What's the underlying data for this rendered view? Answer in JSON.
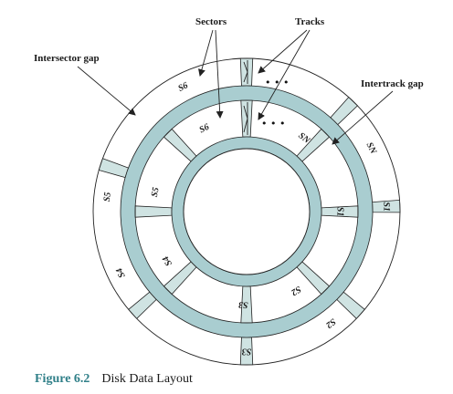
{
  "labels": {
    "sectors": "Sectors",
    "tracks": "Tracks",
    "intersector_gap": "Intersector gap",
    "intertrack_gap": "Intertrack gap",
    "ellipsis": "• • •"
  },
  "outer_sectors": [
    "S6",
    "SN",
    "S1",
    "S2",
    "S3",
    "S4",
    "S5"
  ],
  "inner_sectors": [
    "S6",
    "SN",
    "S1",
    "S2",
    "S3",
    "S4",
    "S5"
  ],
  "caption": {
    "number": "Figure 6.2",
    "text": "Disk Data Layout"
  },
  "colors": {
    "gap_fill": "#cfe3e2",
    "ring_fill": "#a9cdd0",
    "caption_accent": "#2f7f88"
  }
}
